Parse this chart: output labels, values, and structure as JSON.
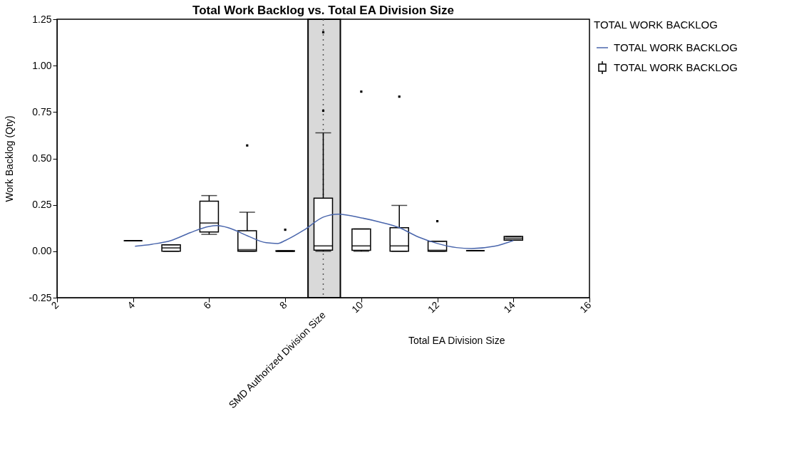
{
  "chart_data": {
    "type": "box",
    "title": "Total Work Backlog vs. Total EA Division Size",
    "xlabel": "Total EA Division Size",
    "ylabel": "Work Backlog (Qty)",
    "legend_title": "TOTAL WORK BACKLOG",
    "legend": "top right",
    "grid": false,
    "xlim": [
      2,
      16
    ],
    "xticks": [
      2,
      4,
      6,
      8,
      10,
      12,
      14,
      16
    ],
    "ylim": [
      -0.25,
      1.25
    ],
    "yticks": [
      {
        "value": -0.25,
        "label": "-0.25"
      },
      {
        "value": 0,
        "label": "0.00"
      },
      {
        "value": 0.25,
        "label": "0.25"
      },
      {
        "value": 0.5,
        "label": "0.50"
      },
      {
        "value": 0.75,
        "label": "0.75"
      },
      {
        "value": 1,
        "label": "1.00"
      },
      {
        "value": 1.25,
        "label": "1.25"
      }
    ],
    "bands": [
      {
        "axis": "x",
        "from": 8.6,
        "to": 9.45,
        "label": "SMD Authorized Division Size",
        "color": "#d9d9d9"
      }
    ],
    "ref_lines": [
      {
        "axis": "x",
        "value": 9,
        "line_style": "dotted",
        "color": "#555555"
      }
    ],
    "series": [
      {
        "name": "TOTAL WORK BACKLOG",
        "type": "line",
        "color": "#4a66ac",
        "x": [
          4.05,
          4.5,
          5,
          5.5,
          6,
          6.2,
          6.5,
          7,
          7.5,
          7.8,
          8,
          8.5,
          9,
          9.4,
          10,
          10.5,
          11,
          11.5,
          12,
          12.5,
          12.9,
          13.5,
          14
        ],
        "values": [
          0.027,
          0.038,
          0.058,
          0.1,
          0.134,
          0.138,
          0.127,
          0.084,
          0.046,
          0.042,
          0.058,
          0.115,
          0.184,
          0.2,
          0.18,
          0.157,
          0.127,
          0.077,
          0.042,
          0.02,
          0.015,
          0.027,
          0.058
        ]
      },
      {
        "name": "TOTAL WORK BACKLOG",
        "color": "#000000",
        "x": [
          4,
          5,
          6,
          7,
          8,
          9,
          10,
          11,
          12,
          13,
          14
        ],
        "boxes": [
          {
            "low": 0.057,
            "q1": 0.057,
            "median": 0.057,
            "q3": 0.057,
            "high": 0.057
          },
          {
            "low": 0,
            "q1": 0,
            "median": 0.018,
            "q3": 0.035,
            "high": 0.035
          },
          {
            "low": 0.091,
            "q1": 0.104,
            "median": 0.152,
            "q3": 0.27,
            "high": 0.3
          },
          {
            "low": 0,
            "q1": 0,
            "median": 0.008,
            "q3": 0.111,
            "high": 0.21,
            "outliers": [
              0.57
            ]
          },
          {
            "low": 0,
            "q1": 0,
            "median": 0,
            "q3": 0.003,
            "high": 0.003,
            "outliers": [
              0.116
            ]
          },
          {
            "low": 0,
            "q1": 0.006,
            "median": 0.029,
            "q3": 0.286,
            "high": 0.638,
            "outliers": [
              0.757,
              1.18
            ]
          },
          {
            "low": 0,
            "q1": 0.005,
            "median": 0.029,
            "q3": 0.12,
            "high": 0.12,
            "outliers": [
              0.86
            ]
          },
          {
            "low": 0,
            "q1": 0,
            "median": 0.029,
            "q3": 0.127,
            "high": 0.247,
            "outliers": [
              0.833
            ]
          },
          {
            "low": 0,
            "q1": 0,
            "median": 0.005,
            "q3": 0.054,
            "high": 0.054,
            "outliers": [
              0.162
            ]
          },
          {
            "low": 0.003,
            "q1": 0.003,
            "median": 0.003,
            "q3": 0.003,
            "high": 0.003
          },
          {
            "low": 0.06,
            "q1": 0.06,
            "median": 0.07,
            "q3": 0.08,
            "high": 0.08
          }
        ]
      }
    ]
  }
}
